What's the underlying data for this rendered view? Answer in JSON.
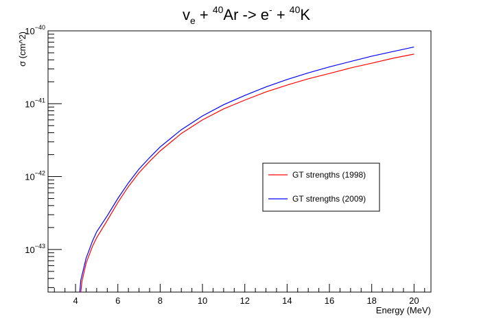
{
  "chart_data": {
    "type": "line",
    "title": {
      "parts": [
        {
          "text": "v",
          "style": "normal"
        },
        {
          "text": "e",
          "style": "sub"
        },
        {
          "text": " +  ",
          "style": "normal"
        },
        {
          "text": "40",
          "style": "sup"
        },
        {
          "text": "Ar -> e",
          "style": "normal"
        },
        {
          "text": "-",
          "style": "sup"
        },
        {
          "text": " +  ",
          "style": "normal"
        },
        {
          "text": "40",
          "style": "sup"
        },
        {
          "text": "K",
          "style": "normal"
        }
      ]
    },
    "xlabel": "Energy (MeV)",
    "ylabel": "σ (cm^2)",
    "xlim": [
      2.7,
      20.8
    ],
    "ylim": [
      2.6e-44,
      1e-40
    ],
    "yscale": "log",
    "xticks": [
      4,
      6,
      8,
      10,
      12,
      14,
      16,
      18,
      20
    ],
    "yticks": [
      {
        "value": 1e-43,
        "base": "10",
        "exp": "−43"
      },
      {
        "value": 1e-42,
        "base": "10",
        "exp": "−42"
      },
      {
        "value": 1e-41,
        "base": "10",
        "exp": "−41"
      },
      {
        "value": 1e-40,
        "base": "10",
        "exp": "−40"
      }
    ],
    "grid": false,
    "legend_position": "right-middle",
    "series": [
      {
        "name": "GT strengths (1998)",
        "color": "#ff0000",
        "points": [
          [
            4.25,
            2.6e-44
          ],
          [
            4.3,
            3.6e-44
          ],
          [
            4.5,
            6.5e-44
          ],
          [
            4.8,
            1.1e-43
          ],
          [
            5.0,
            1.45e-43
          ],
          [
            5.5,
            2.5e-43
          ],
          [
            6.0,
            4.4e-43
          ],
          [
            6.5,
            7.3e-43
          ],
          [
            7.0,
            1.13e-42
          ],
          [
            7.5,
            1.62e-42
          ],
          [
            8.0,
            2.25e-42
          ],
          [
            9.0,
            3.9e-42
          ],
          [
            10.0,
            6e-42
          ],
          [
            11.0,
            8.5e-42
          ],
          [
            12.0,
            1.12e-41
          ],
          [
            13.0,
            1.45e-41
          ],
          [
            14.0,
            1.8e-41
          ],
          [
            15.0,
            2.2e-41
          ],
          [
            16.0,
            2.6e-41
          ],
          [
            17.0,
            3.1e-41
          ],
          [
            18.0,
            3.6e-41
          ],
          [
            19.0,
            4.2e-41
          ],
          [
            20.0,
            4.8e-41
          ]
        ]
      },
      {
        "name": "GT strengths (2009)",
        "color": "#0000ff",
        "points": [
          [
            4.2,
            2.6e-44
          ],
          [
            4.25,
            3.8e-44
          ],
          [
            4.5,
            7.6e-44
          ],
          [
            4.8,
            1.3e-43
          ],
          [
            5.0,
            1.75e-43
          ],
          [
            5.5,
            2.9e-43
          ],
          [
            6.0,
            5e-43
          ],
          [
            6.5,
            8.2e-43
          ],
          [
            7.0,
            1.27e-42
          ],
          [
            7.5,
            1.82e-42
          ],
          [
            8.0,
            2.55e-42
          ],
          [
            9.0,
            4.4e-42
          ],
          [
            10.0,
            6.8e-42
          ],
          [
            11.0,
            9.7e-42
          ],
          [
            12.0,
            1.3e-41
          ],
          [
            13.0,
            1.7e-41
          ],
          [
            14.0,
            2.15e-41
          ],
          [
            15.0,
            2.65e-41
          ],
          [
            16.0,
            3.2e-41
          ],
          [
            17.0,
            3.8e-41
          ],
          [
            18.0,
            4.5e-41
          ],
          [
            19.0,
            5.2e-41
          ],
          [
            20.0,
            6e-41
          ]
        ]
      }
    ]
  }
}
